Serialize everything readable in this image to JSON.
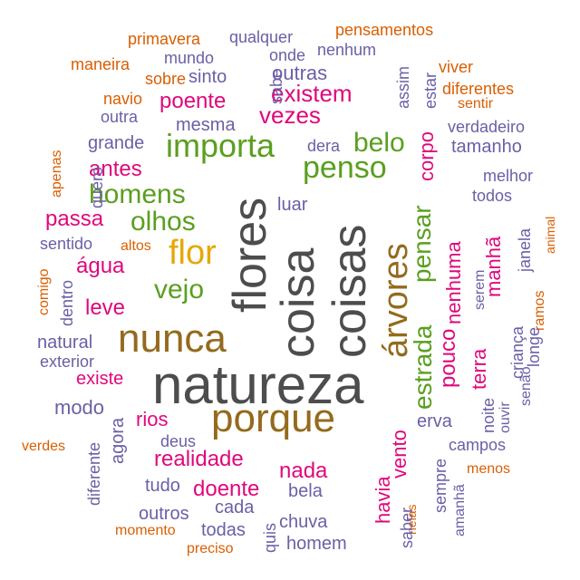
{
  "colors": {
    "dark_gray": "#4d4d4d",
    "brown": "#946a1c",
    "magenta": "#e0077d",
    "green": "#5a9f1f",
    "purple": "#6b5fa6",
    "orange": "#d95f02",
    "gold": "#e6a808"
  },
  "words": [
    {
      "text": "natureza",
      "color": "dark_gray"
    },
    {
      "text": "flores",
      "color": "dark_gray"
    },
    {
      "text": "coisa",
      "color": "dark_gray"
    },
    {
      "text": "coisas",
      "color": "dark_gray"
    },
    {
      "text": "nunca",
      "color": "brown"
    },
    {
      "text": "porque",
      "color": "brown"
    },
    {
      "text": "árvores",
      "color": "brown"
    },
    {
      "text": "flor",
      "color": "gold"
    },
    {
      "text": "importa",
      "color": "green"
    },
    {
      "text": "penso",
      "color": "green"
    },
    {
      "text": "homens",
      "color": "green"
    },
    {
      "text": "olhos",
      "color": "green"
    },
    {
      "text": "vejo",
      "color": "green"
    },
    {
      "text": "belo",
      "color": "green"
    },
    {
      "text": "pensar",
      "color": "green"
    },
    {
      "text": "estrada",
      "color": "green"
    },
    {
      "text": "existem",
      "color": "magenta"
    },
    {
      "text": "vezes",
      "color": "magenta"
    },
    {
      "text": "poente",
      "color": "magenta"
    },
    {
      "text": "antes",
      "color": "magenta"
    },
    {
      "text": "passa",
      "color": "magenta"
    },
    {
      "text": "água",
      "color": "magenta"
    },
    {
      "text": "leve",
      "color": "magenta"
    },
    {
      "text": "existe",
      "color": "magenta"
    },
    {
      "text": "rios",
      "color": "magenta"
    },
    {
      "text": "realidade",
      "color": "magenta"
    },
    {
      "text": "doente",
      "color": "magenta"
    },
    {
      "text": "nada",
      "color": "magenta"
    },
    {
      "text": "havia",
      "color": "magenta"
    },
    {
      "text": "vento",
      "color": "magenta"
    },
    {
      "text": "pouco",
      "color": "magenta"
    },
    {
      "text": "terra",
      "color": "magenta"
    },
    {
      "text": "nenhuma",
      "color": "magenta"
    },
    {
      "text": "manhã",
      "color": "magenta"
    },
    {
      "text": "corpo",
      "color": "magenta"
    },
    {
      "text": "primavera",
      "color": "orange"
    },
    {
      "text": "pensamentos",
      "color": "orange"
    },
    {
      "text": "maneira",
      "color": "orange"
    },
    {
      "text": "viver",
      "color": "orange"
    },
    {
      "text": "navio",
      "color": "orange"
    },
    {
      "text": "sobre",
      "color": "orange"
    },
    {
      "text": "diferentes",
      "color": "orange"
    },
    {
      "text": "sentir",
      "color": "orange"
    },
    {
      "text": "apenas",
      "color": "orange"
    },
    {
      "text": "altos",
      "color": "orange"
    },
    {
      "text": "comigo",
      "color": "orange"
    },
    {
      "text": "animal",
      "color": "orange"
    },
    {
      "text": "ramos",
      "color": "orange"
    },
    {
      "text": "verdes",
      "color": "orange"
    },
    {
      "text": "menos",
      "color": "orange"
    },
    {
      "text": "momento",
      "color": "orange"
    },
    {
      "text": "preciso",
      "color": "orange"
    },
    {
      "text": "nelas",
      "color": "orange"
    },
    {
      "text": "qualquer",
      "color": "purple"
    },
    {
      "text": "mundo",
      "color": "purple"
    },
    {
      "text": "onde",
      "color": "purple"
    },
    {
      "text": "nenhum",
      "color": "purple"
    },
    {
      "text": "sinto",
      "color": "purple"
    },
    {
      "text": "sabe",
      "color": "purple"
    },
    {
      "text": "outras",
      "color": "purple"
    },
    {
      "text": "assim",
      "color": "purple"
    },
    {
      "text": "estar",
      "color": "purple"
    },
    {
      "text": "outra",
      "color": "purple"
    },
    {
      "text": "mesma",
      "color": "purple"
    },
    {
      "text": "verdadeiro",
      "color": "purple"
    },
    {
      "text": "grande",
      "color": "purple"
    },
    {
      "text": "dera",
      "color": "purple"
    },
    {
      "text": "tamanho",
      "color": "purple"
    },
    {
      "text": "quero",
      "color": "purple"
    },
    {
      "text": "melhor",
      "color": "purple"
    },
    {
      "text": "todos",
      "color": "purple"
    },
    {
      "text": "luar",
      "color": "purple"
    },
    {
      "text": "sentido",
      "color": "purple"
    },
    {
      "text": "janela",
      "color": "purple"
    },
    {
      "text": "dentro",
      "color": "purple"
    },
    {
      "text": "serem",
      "color": "purple"
    },
    {
      "text": "criança",
      "color": "purple"
    },
    {
      "text": "longe",
      "color": "purple"
    },
    {
      "text": "natural",
      "color": "purple"
    },
    {
      "text": "exterior",
      "color": "purple"
    },
    {
      "text": "senão",
      "color": "purple"
    },
    {
      "text": "noite",
      "color": "purple"
    },
    {
      "text": "ouvir",
      "color": "purple"
    },
    {
      "text": "modo",
      "color": "purple"
    },
    {
      "text": "erva",
      "color": "purple"
    },
    {
      "text": "agora",
      "color": "purple"
    },
    {
      "text": "deus",
      "color": "purple"
    },
    {
      "text": "campos",
      "color": "purple"
    },
    {
      "text": "diferente",
      "color": "purple"
    },
    {
      "text": "sempre",
      "color": "purple"
    },
    {
      "text": "tudo",
      "color": "purple"
    },
    {
      "text": "bela",
      "color": "purple"
    },
    {
      "text": "amanhã",
      "color": "purple"
    },
    {
      "text": "cada",
      "color": "purple"
    },
    {
      "text": "outros",
      "color": "purple"
    },
    {
      "text": "chuva",
      "color": "purple"
    },
    {
      "text": "todas",
      "color": "purple"
    },
    {
      "text": "quis",
      "color": "purple"
    },
    {
      "text": "saber",
      "color": "purple"
    },
    {
      "text": "homem",
      "color": "purple"
    }
  ]
}
